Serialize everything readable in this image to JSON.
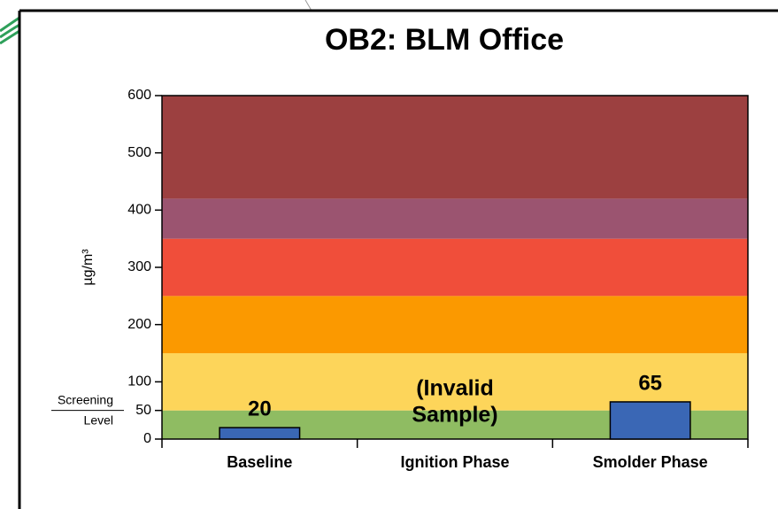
{
  "chart_data": {
    "type": "bar",
    "title": "OB2:  BLM Office",
    "y_label": "µg/m³",
    "categories": [
      "Baseline",
      "Ignition Phase",
      "Smolder Phase"
    ],
    "values": [
      20,
      null,
      65
    ],
    "color": "#3a67b5",
    "ylim": [
      0,
      600
    ],
    "yticks": [
      0,
      50,
      100,
      200,
      300,
      400,
      500,
      600
    ],
    "bands": [
      {
        "from": 0,
        "to": 50,
        "color": "#8fbc62"
      },
      {
        "from": 50,
        "to": 150,
        "color": "#fdd55a"
      },
      {
        "from": 150,
        "to": 250,
        "color": "#fb9900"
      },
      {
        "from": 250,
        "to": 350,
        "color": "#f04e3a"
      },
      {
        "from": 350,
        "to": 420,
        "color": "#9b5470"
      },
      {
        "from": 420,
        "to": 600,
        "color": "#9c4040"
      }
    ],
    "annotations": [
      "(Invalid",
      "Sample)"
    ],
    "screening_label": [
      "Screening",
      "Level"
    ]
  }
}
